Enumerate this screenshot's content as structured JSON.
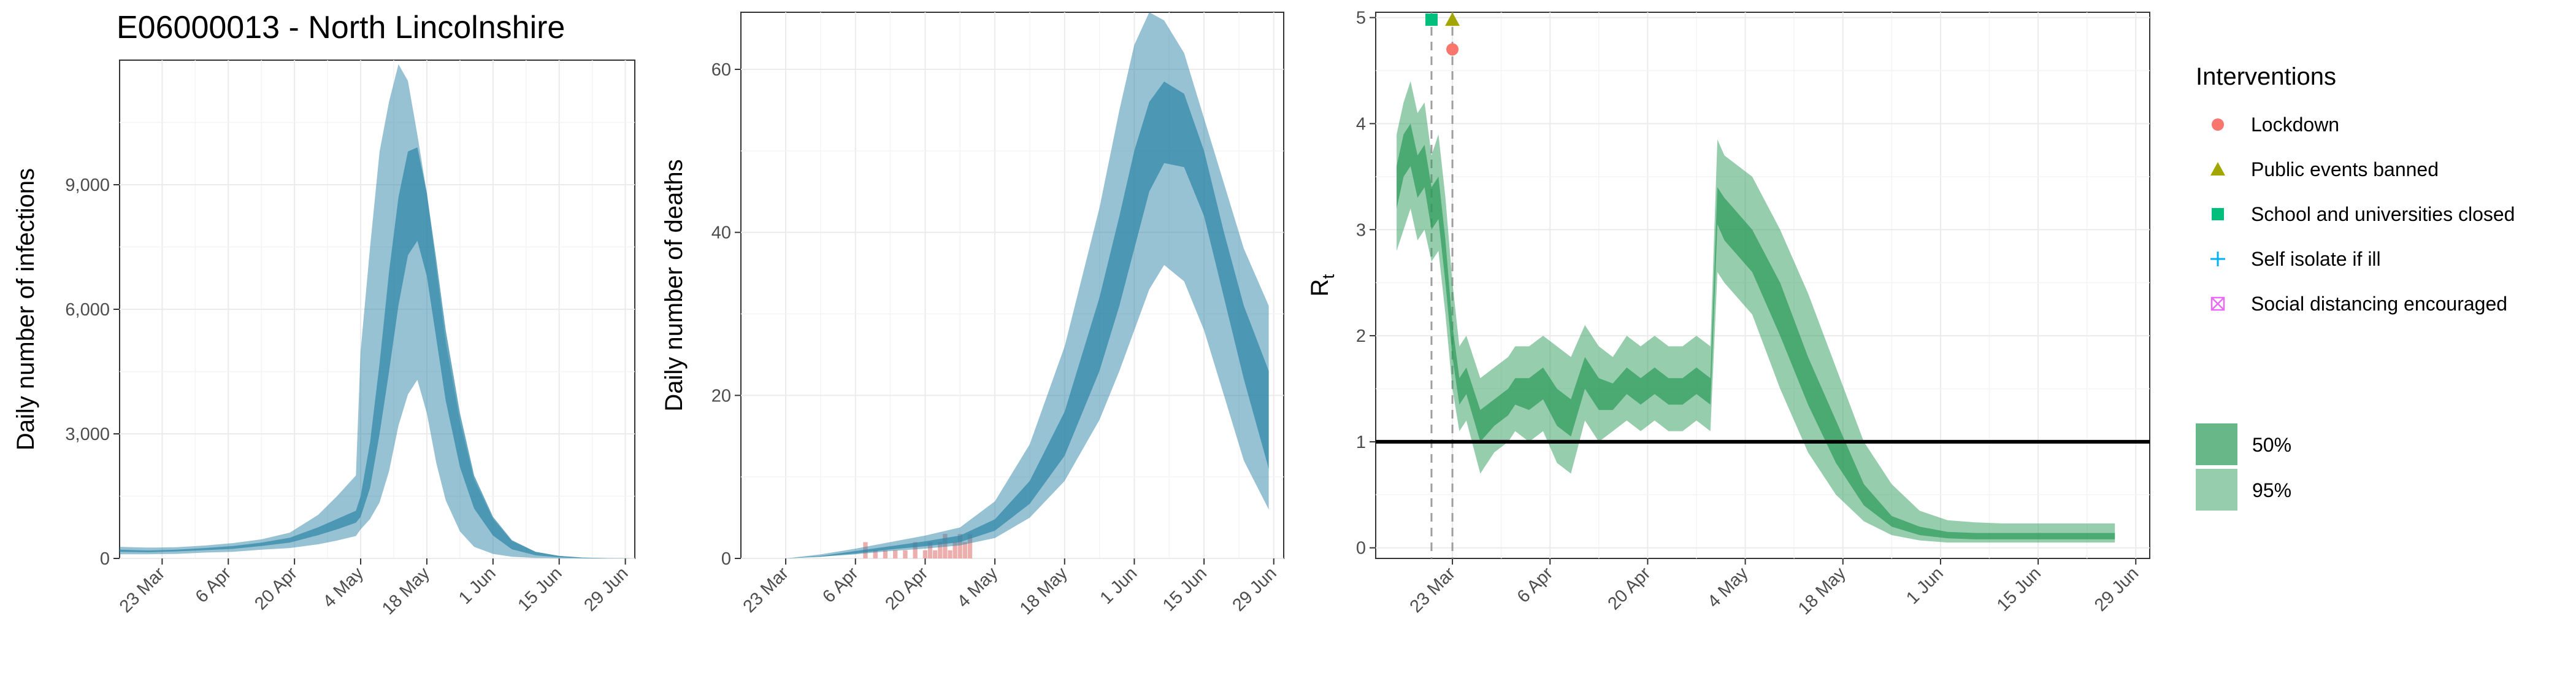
{
  "figure_title": "E06000013 - North Lincolnshire",
  "colors": {
    "infections_band": "#2e86a8",
    "rt_band": "#2e9b5c",
    "deaths_bar": "#e89a9a",
    "threshold_line": "#000000",
    "lockdown": "#f8766d",
    "public_events": "#a3a500",
    "schools": "#00bf7d",
    "self_isolate": "#00b0f6",
    "social_distancing": "#e76bf3"
  },
  "chart_data": [
    {
      "type": "area",
      "ylabel": "Daily number of infections",
      "xlim": [
        "2020-03-14",
        "2020-07-01"
      ],
      "ylim": [
        0,
        12000
      ],
      "yticks": [
        0,
        3000,
        6000,
        9000
      ],
      "yticklabels": [
        "0",
        "3,000",
        "6,000",
        "9,000"
      ],
      "xticks": [
        "2020-03-23",
        "2020-04-06",
        "2020-04-20",
        "2020-05-04",
        "2020-05-18",
        "2020-06-01",
        "2020-06-15",
        "2020-06-29"
      ],
      "xticklabels": [
        "23 Mar",
        "6 Apr",
        "20 Apr",
        "4 May",
        "18 May",
        "1 Jun",
        "15 Jun",
        "29 Jun"
      ],
      "series": [
        {
          "interval": "95%",
          "x": [
            "2020-03-14",
            "2020-03-20",
            "2020-03-26",
            "2020-04-01",
            "2020-04-07",
            "2020-04-13",
            "2020-04-19",
            "2020-04-25",
            "2020-04-29",
            "2020-05-03",
            "2020-05-04",
            "2020-05-06",
            "2020-05-08",
            "2020-05-10",
            "2020-05-12",
            "2020-05-14",
            "2020-05-16",
            "2020-05-18",
            "2020-05-20",
            "2020-05-22",
            "2020-05-25",
            "2020-05-28",
            "2020-06-01",
            "2020-06-05",
            "2020-06-10",
            "2020-06-15",
            "2020-06-20",
            "2020-06-25",
            "2020-06-30"
          ],
          "upper": [
            280,
            260,
            270,
            310,
            370,
            460,
            620,
            1050,
            1500,
            2000,
            5000,
            7500,
            9800,
            11000,
            11900,
            11500,
            10200,
            8800,
            7000,
            5200,
            3300,
            1900,
            950,
            420,
            160,
            60,
            20,
            8,
            3
          ],
          "lower": [
            100,
            100,
            110,
            140,
            160,
            210,
            250,
            340,
            430,
            540,
            700,
            950,
            1350,
            2100,
            3200,
            3950,
            4300,
            3500,
            2300,
            1400,
            650,
            280,
            110,
            40,
            12,
            4,
            1,
            0,
            0
          ]
        },
        {
          "interval": "50%",
          "x": [
            "2020-03-14",
            "2020-03-20",
            "2020-03-26",
            "2020-04-01",
            "2020-04-07",
            "2020-04-13",
            "2020-04-19",
            "2020-04-25",
            "2020-04-29",
            "2020-05-03",
            "2020-05-04",
            "2020-05-06",
            "2020-05-08",
            "2020-05-10",
            "2020-05-12",
            "2020-05-14",
            "2020-05-16",
            "2020-05-18",
            "2020-05-20",
            "2020-05-22",
            "2020-05-25",
            "2020-05-28",
            "2020-06-01",
            "2020-06-05",
            "2020-06-10",
            "2020-06-15",
            "2020-06-20",
            "2020-06-25",
            "2020-06-30"
          ],
          "upper": [
            210,
            190,
            210,
            250,
            300,
            380,
            500,
            750,
            950,
            1150,
            1500,
            2800,
            4700,
            6900,
            8700,
            9800,
            9900,
            8800,
            7200,
            5500,
            3500,
            2000,
            1000,
            440,
            160,
            60,
            20,
            8,
            3
          ],
          "lower": [
            160,
            150,
            170,
            200,
            230,
            300,
            380,
            560,
            700,
            860,
            1000,
            1700,
            3000,
            4500,
            6100,
            7300,
            7650,
            6800,
            5300,
            3800,
            2200,
            1200,
            550,
            220,
            75,
            25,
            8,
            3,
            1
          ]
        }
      ]
    },
    {
      "type": "area",
      "ylabel": "Daily number of deaths",
      "xlim": [
        "2020-03-14",
        "2020-07-01"
      ],
      "ylim": [
        0,
        67
      ],
      "yticks": [
        0,
        20,
        40,
        60
      ],
      "yticklabels": [
        "0",
        "20",
        "40",
        "60"
      ],
      "xticks": [
        "2020-03-23",
        "2020-04-06",
        "2020-04-20",
        "2020-05-04",
        "2020-05-18",
        "2020-06-01",
        "2020-06-15",
        "2020-06-29"
      ],
      "xticklabels": [
        "23 Mar",
        "6 Apr",
        "20 Apr",
        "4 May",
        "18 May",
        "1 Jun",
        "15 Jun",
        "29 Jun"
      ],
      "series": [
        {
          "interval": "95%",
          "x": [
            "2020-03-23",
            "2020-03-30",
            "2020-04-06",
            "2020-04-13",
            "2020-04-20",
            "2020-04-27",
            "2020-05-04",
            "2020-05-11",
            "2020-05-18",
            "2020-05-25",
            "2020-05-29",
            "2020-06-01",
            "2020-06-04",
            "2020-06-07",
            "2020-06-11",
            "2020-06-15",
            "2020-06-19",
            "2020-06-23",
            "2020-06-28"
          ],
          "upper": [
            0,
            0.5,
            1.2,
            2,
            2.8,
            3.8,
            7,
            14,
            26,
            43,
            55,
            63,
            67,
            66,
            62,
            54,
            46,
            38,
            31
          ],
          "lower": [
            0,
            0.2,
            0.5,
            0.9,
            1.2,
            1.6,
            2.5,
            5,
            9.5,
            17,
            23,
            28,
            33,
            36,
            34,
            28,
            20,
            12,
            6
          ]
        },
        {
          "interval": "50%",
          "x": [
            "2020-03-23",
            "2020-03-30",
            "2020-04-06",
            "2020-04-13",
            "2020-04-20",
            "2020-04-27",
            "2020-05-04",
            "2020-05-11",
            "2020-05-18",
            "2020-05-25",
            "2020-05-29",
            "2020-06-01",
            "2020-06-04",
            "2020-06-07",
            "2020-06-11",
            "2020-06-15",
            "2020-06-19",
            "2020-06-23",
            "2020-06-28"
          ],
          "upper": [
            0,
            0.3,
            0.9,
            1.5,
            2.1,
            2.8,
            4.8,
            9.5,
            18,
            32,
            42,
            50,
            56,
            58.5,
            57,
            50,
            40,
            31,
            23
          ],
          "lower": [
            0,
            0.2,
            0.6,
            1.1,
            1.5,
            2,
            3.4,
            6.7,
            12.6,
            23,
            31,
            38,
            45,
            48.5,
            48,
            42,
            32,
            22,
            11
          ]
        }
      ],
      "observed_deaths": {
        "x": [
          "2020-04-08",
          "2020-04-10",
          "2020-04-12",
          "2020-04-14",
          "2020-04-16",
          "2020-04-18",
          "2020-04-20",
          "2020-04-21",
          "2020-04-22",
          "2020-04-23",
          "2020-04-24",
          "2020-04-25",
          "2020-04-26",
          "2020-04-27",
          "2020-04-28",
          "2020-04-29"
        ],
        "values": [
          2,
          1,
          1,
          1,
          1,
          2,
          1,
          2,
          1,
          2,
          3,
          1,
          2,
          3,
          2,
          3
        ]
      }
    },
    {
      "type": "area",
      "ylabel": "R",
      "ylabel_subscript": "t",
      "xlim": [
        "2020-03-12",
        "2020-07-01"
      ],
      "ylim": [
        -0.1,
        5.05
      ],
      "yticks": [
        0,
        1,
        2,
        3,
        4,
        5
      ],
      "yticklabels": [
        "0",
        "1",
        "2",
        "3",
        "4",
        "5"
      ],
      "xticks": [
        "2020-03-23",
        "2020-04-06",
        "2020-04-20",
        "2020-05-04",
        "2020-05-18",
        "2020-06-01",
        "2020-06-15",
        "2020-06-29"
      ],
      "xticklabels": [
        "23 Mar",
        "6 Apr",
        "20 Apr",
        "4 May",
        "18 May",
        "1 Jun",
        "15 Jun",
        "29 Jun"
      ],
      "hline": 1,
      "series": [
        {
          "interval": "95%",
          "x": [
            "2020-03-15",
            "2020-03-16",
            "2020-03-17",
            "2020-03-18",
            "2020-03-19",
            "2020-03-20",
            "2020-03-21",
            "2020-03-22",
            "2020-03-23",
            "2020-03-24",
            "2020-03-25",
            "2020-03-27",
            "2020-03-29",
            "2020-03-31",
            "2020-04-01",
            "2020-04-03",
            "2020-04-05",
            "2020-04-07",
            "2020-04-09",
            "2020-04-11",
            "2020-04-13",
            "2020-04-15",
            "2020-04-17",
            "2020-04-19",
            "2020-04-21",
            "2020-04-23",
            "2020-04-25",
            "2020-04-27",
            "2020-04-29",
            "2020-04-30",
            "2020-05-01",
            "2020-05-05",
            "2020-05-09",
            "2020-05-13",
            "2020-05-17",
            "2020-05-21",
            "2020-05-25",
            "2020-05-29",
            "2020-06-02",
            "2020-06-06",
            "2020-06-10",
            "2020-06-14",
            "2020-06-18",
            "2020-06-22",
            "2020-06-26"
          ],
          "upper": [
            3.9,
            4.2,
            4.4,
            4.1,
            4.2,
            3.7,
            3.9,
            3.3,
            2.5,
            1.9,
            2.0,
            1.6,
            1.7,
            1.8,
            1.9,
            1.9,
            2.0,
            1.9,
            1.8,
            2.1,
            1.9,
            1.8,
            2.0,
            1.9,
            2.0,
            1.9,
            1.9,
            2.0,
            1.9,
            3.85,
            3.7,
            3.5,
            3.0,
            2.4,
            1.7,
            1.0,
            0.6,
            0.35,
            0.26,
            0.24,
            0.23,
            0.23,
            0.23,
            0.23,
            0.23
          ],
          "lower": [
            2.8,
            3.0,
            3.2,
            2.9,
            3.0,
            2.7,
            2.8,
            2.2,
            1.5,
            1.1,
            1.2,
            0.7,
            0.9,
            1.0,
            1.1,
            1.0,
            1.1,
            0.8,
            0.7,
            1.2,
            1.0,
            1.1,
            1.2,
            1.1,
            1.2,
            1.1,
            1.1,
            1.2,
            1.1,
            2.6,
            2.5,
            2.2,
            1.5,
            0.9,
            0.5,
            0.25,
            0.12,
            0.07,
            0.05,
            0.05,
            0.05,
            0.05,
            0.05,
            0.05,
            0.05
          ]
        },
        {
          "interval": "50%",
          "x": [
            "2020-03-15",
            "2020-03-16",
            "2020-03-17",
            "2020-03-18",
            "2020-03-19",
            "2020-03-20",
            "2020-03-21",
            "2020-03-22",
            "2020-03-23",
            "2020-03-24",
            "2020-03-25",
            "2020-03-27",
            "2020-03-29",
            "2020-03-31",
            "2020-04-01",
            "2020-04-03",
            "2020-04-05",
            "2020-04-07",
            "2020-04-09",
            "2020-04-11",
            "2020-04-13",
            "2020-04-15",
            "2020-04-17",
            "2020-04-19",
            "2020-04-21",
            "2020-04-23",
            "2020-04-25",
            "2020-04-27",
            "2020-04-29",
            "2020-04-30",
            "2020-05-01",
            "2020-05-05",
            "2020-05-09",
            "2020-05-13",
            "2020-05-17",
            "2020-05-21",
            "2020-05-25",
            "2020-05-29",
            "2020-06-02",
            "2020-06-06",
            "2020-06-10",
            "2020-06-14",
            "2020-06-18",
            "2020-06-22",
            "2020-06-26"
          ],
          "upper": [
            3.6,
            3.9,
            4.0,
            3.7,
            3.8,
            3.4,
            3.5,
            2.9,
            2.1,
            1.6,
            1.7,
            1.3,
            1.4,
            1.5,
            1.6,
            1.6,
            1.7,
            1.5,
            1.4,
            1.8,
            1.6,
            1.55,
            1.7,
            1.6,
            1.7,
            1.6,
            1.6,
            1.7,
            1.6,
            3.4,
            3.3,
            3.0,
            2.5,
            1.8,
            1.2,
            0.6,
            0.3,
            0.2,
            0.15,
            0.14,
            0.14,
            0.14,
            0.14,
            0.14,
            0.14
          ],
          "lower": [
            3.2,
            3.5,
            3.6,
            3.3,
            3.4,
            3.0,
            3.1,
            2.5,
            1.8,
            1.35,
            1.45,
            1.0,
            1.15,
            1.25,
            1.35,
            1.3,
            1.4,
            1.15,
            1.05,
            1.5,
            1.3,
            1.3,
            1.45,
            1.35,
            1.45,
            1.35,
            1.35,
            1.45,
            1.35,
            3.05,
            2.9,
            2.6,
            2.0,
            1.35,
            0.8,
            0.4,
            0.2,
            0.12,
            0.09,
            0.08,
            0.08,
            0.08,
            0.08,
            0.08,
            0.08
          ]
        }
      ],
      "interventions": [
        {
          "name": "Lockdown",
          "date": "2020-03-23",
          "y": 4.7,
          "shape": "circle"
        },
        {
          "name": "Public events banned",
          "date": "2020-03-23",
          "y": 4.98,
          "shape": "triangle"
        },
        {
          "name": "School and universities closed",
          "date": "2020-03-20",
          "y": 4.98,
          "shape": "square"
        }
      ]
    }
  ],
  "legend": {
    "interventions_title": "Interventions",
    "interventions": [
      {
        "label": "Lockdown",
        "shape": "circle"
      },
      {
        "label": "Public events banned",
        "shape": "triangle"
      },
      {
        "label": "School and universities closed",
        "shape": "square"
      },
      {
        "label": "Self isolate if ill",
        "shape": "plus"
      },
      {
        "label": "Social distancing encouraged",
        "shape": "boxx"
      }
    ],
    "intervals": [
      {
        "label": "50%"
      },
      {
        "label": "95%"
      }
    ]
  }
}
